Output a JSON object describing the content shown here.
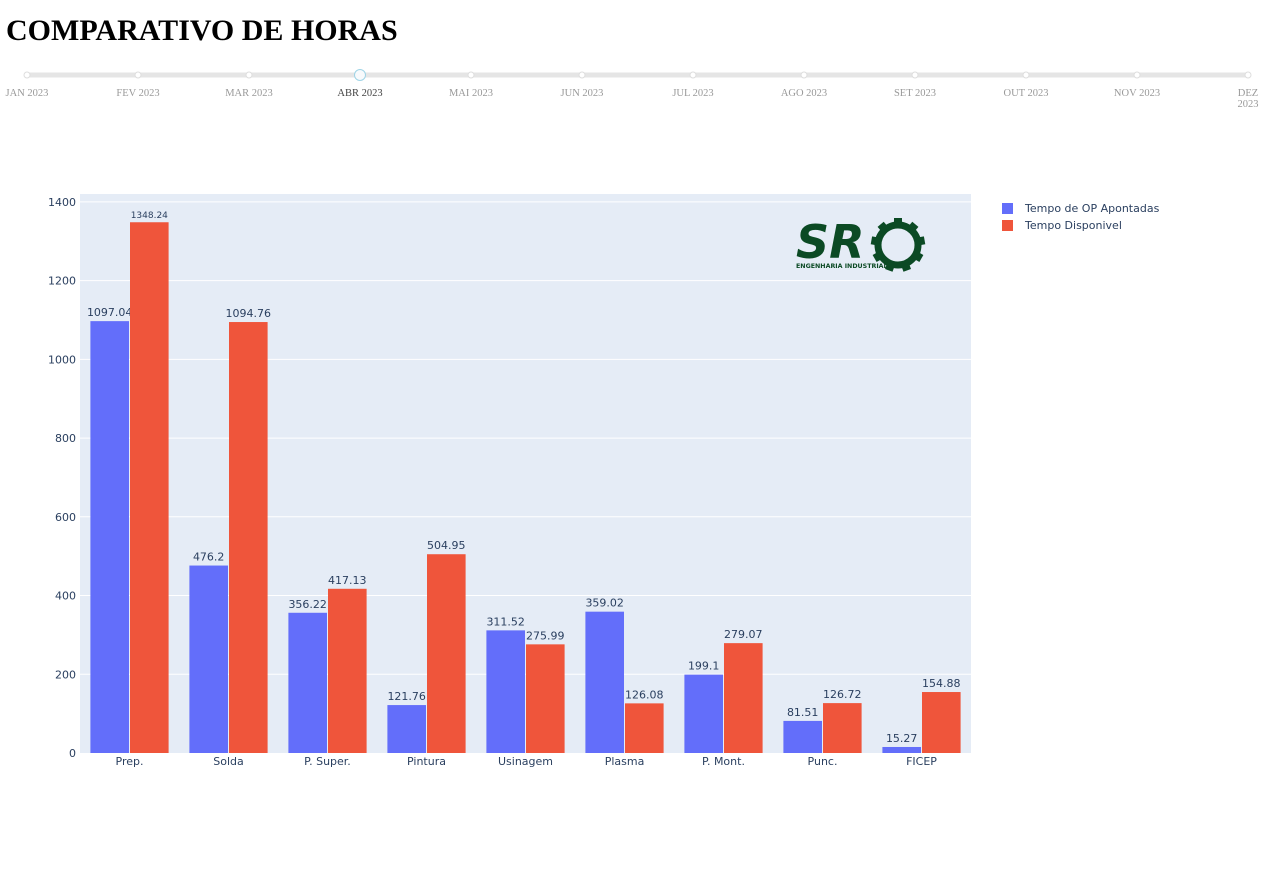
{
  "page": {
    "title": "COMPARATIVO DE HORAS"
  },
  "slider": {
    "months": [
      "JAN 2023",
      "FEV 2023",
      "MAR 2023",
      "ABR 2023",
      "MAI 2023",
      "JUN 2023",
      "JUL 2023",
      "AGO 2023",
      "SET 2023",
      "OUT 2023",
      "NOV 2023",
      "DEZ 2023"
    ],
    "selected_index": 3
  },
  "logo": {
    "main": "SR",
    "sub": "ENGENHARIA INDUSTRIAL",
    "color": "#0b4a24"
  },
  "colors": {
    "series1": "#636efa",
    "series2": "#ef553b",
    "plot_bg": "#e5ecf6",
    "text": "#2a3f5f"
  },
  "chart_data": {
    "type": "bar",
    "categories": [
      "Prep.",
      "Solda",
      "P. Super.",
      "Pintura",
      "Usinagem",
      "Plasma",
      "P. Mont.",
      "Punc.",
      "FICEP"
    ],
    "series": [
      {
        "name": "Tempo de OP Apontadas",
        "values": [
          1097.04,
          476.2,
          356.22,
          121.76,
          311.52,
          359.02,
          199.1,
          81.51,
          15.27
        ]
      },
      {
        "name": "Tempo Disponivel",
        "values": [
          1348.24,
          1094.76,
          417.13,
          504.95,
          275.99,
          126.08,
          279.07,
          126.72,
          154.88
        ]
      }
    ],
    "ylim": [
      0,
      1420
    ],
    "yticks": [
      0,
      200,
      400,
      600,
      800,
      1000,
      1200,
      1400
    ],
    "grid": true,
    "legend_position": "top-right"
  }
}
